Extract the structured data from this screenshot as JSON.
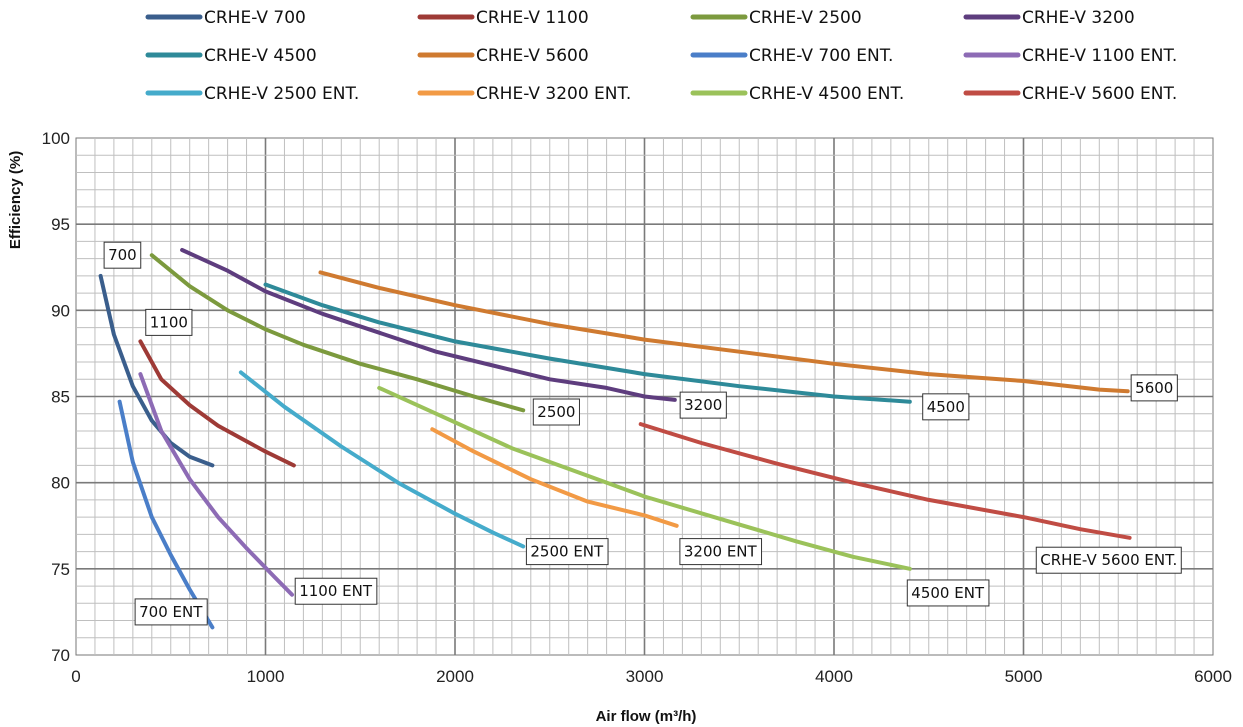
{
  "chart_data": {
    "type": "line",
    "xlabel": "Air flow (m³/h)",
    "ylabel": "Efficiency (%)",
    "xlim": [
      0,
      6000
    ],
    "ylim": [
      70,
      100
    ],
    "x_ticks": [
      0,
      1000,
      2000,
      3000,
      4000,
      5000,
      6000
    ],
    "y_ticks": [
      70,
      75,
      80,
      85,
      90,
      95,
      100
    ],
    "grid": true,
    "legend_position": "top",
    "series": [
      {
        "name": "CRHE-V 700",
        "color": "#3A5E8C",
        "points": [
          [
            130,
            92.0
          ],
          [
            200,
            88.6
          ],
          [
            300,
            85.6
          ],
          [
            400,
            83.6
          ],
          [
            500,
            82.3
          ],
          [
            600,
            81.5
          ],
          [
            720,
            81.0
          ]
        ]
      },
      {
        "name": "CRHE-V 1100",
        "color": "#9E3A36",
        "points": [
          [
            340,
            88.2
          ],
          [
            450,
            86.0
          ],
          [
            600,
            84.5
          ],
          [
            750,
            83.3
          ],
          [
            900,
            82.4
          ],
          [
            1000,
            81.8
          ],
          [
            1150,
            81.0
          ]
        ]
      },
      {
        "name": "CRHE-V 2500",
        "color": "#7C9A3E",
        "points": [
          [
            400,
            93.2
          ],
          [
            600,
            91.4
          ],
          [
            800,
            90.0
          ],
          [
            1000,
            88.9
          ],
          [
            1200,
            88.0
          ],
          [
            1500,
            86.9
          ],
          [
            1800,
            86.0
          ],
          [
            2100,
            85.0
          ],
          [
            2360,
            84.2
          ]
        ]
      },
      {
        "name": "CRHE-V 3200",
        "color": "#5E3D7E",
        "points": [
          [
            560,
            93.5
          ],
          [
            800,
            92.3
          ],
          [
            1000,
            91.1
          ],
          [
            1300,
            89.8
          ],
          [
            1600,
            88.7
          ],
          [
            1900,
            87.6
          ],
          [
            2200,
            86.8
          ],
          [
            2500,
            86.0
          ],
          [
            2800,
            85.5
          ],
          [
            3000,
            85.0
          ],
          [
            3160,
            84.8
          ]
        ]
      },
      {
        "name": "CRHE-V 4500",
        "color": "#2E8A99",
        "points": [
          [
            1000,
            91.5
          ],
          [
            1300,
            90.3
          ],
          [
            1600,
            89.3
          ],
          [
            2000,
            88.2
          ],
          [
            2500,
            87.2
          ],
          [
            3000,
            86.3
          ],
          [
            3500,
            85.6
          ],
          [
            4000,
            85.0
          ],
          [
            4400,
            84.7
          ]
        ]
      },
      {
        "name": "CRHE-V 5600",
        "color": "#CF7A30",
        "points": [
          [
            1290,
            92.2
          ],
          [
            1600,
            91.3
          ],
          [
            2000,
            90.3
          ],
          [
            2500,
            89.2
          ],
          [
            3000,
            88.3
          ],
          [
            3500,
            87.6
          ],
          [
            4000,
            86.9
          ],
          [
            4500,
            86.3
          ],
          [
            5000,
            85.9
          ],
          [
            5400,
            85.4
          ],
          [
            5550,
            85.3
          ]
        ]
      },
      {
        "name": "CRHE-V 700 ENT.",
        "color": "#4A7EC8",
        "points": [
          [
            230,
            84.7
          ],
          [
            300,
            81.2
          ],
          [
            400,
            78.0
          ],
          [
            500,
            75.8
          ],
          [
            600,
            73.8
          ],
          [
            720,
            71.6
          ]
        ]
      },
      {
        "name": "CRHE-V 1100 ENT.",
        "color": "#8D6BB5",
        "points": [
          [
            340,
            86.3
          ],
          [
            450,
            83.0
          ],
          [
            600,
            80.2
          ],
          [
            750,
            78.0
          ],
          [
            900,
            76.2
          ],
          [
            1050,
            74.5
          ],
          [
            1140,
            73.5
          ]
        ]
      },
      {
        "name": "CRHE-V 2500 ENT.",
        "color": "#45ABCB",
        "points": [
          [
            870,
            86.4
          ],
          [
            1100,
            84.4
          ],
          [
            1400,
            82.1
          ],
          [
            1700,
            80.0
          ],
          [
            2000,
            78.2
          ],
          [
            2200,
            77.1
          ],
          [
            2360,
            76.3
          ]
        ]
      },
      {
        "name": "CRHE-V 3200 ENT.",
        "color": "#F29A45",
        "points": [
          [
            1880,
            83.1
          ],
          [
            2100,
            81.8
          ],
          [
            2400,
            80.2
          ],
          [
            2700,
            78.9
          ],
          [
            3000,
            78.1
          ],
          [
            3170,
            77.5
          ]
        ]
      },
      {
        "name": "CRHE-V 4500 ENT.",
        "color": "#9BC25A",
        "points": [
          [
            1600,
            85.5
          ],
          [
            1900,
            84.0
          ],
          [
            2300,
            82.0
          ],
          [
            2700,
            80.4
          ],
          [
            3000,
            79.2
          ],
          [
            3400,
            77.9
          ],
          [
            3800,
            76.6
          ],
          [
            4100,
            75.7
          ],
          [
            4400,
            75.0
          ]
        ]
      },
      {
        "name": "CRHE-V 5600 ENT.",
        "color": "#C04C44",
        "points": [
          [
            2980,
            83.4
          ],
          [
            3300,
            82.3
          ],
          [
            3700,
            81.1
          ],
          [
            4100,
            80.0
          ],
          [
            4500,
            79.0
          ],
          [
            5000,
            78.0
          ],
          [
            5300,
            77.3
          ],
          [
            5560,
            76.8
          ]
        ]
      }
    ],
    "annotations": [
      {
        "text": "700",
        "x": 245,
        "y": 93.2
      },
      {
        "text": "1100",
        "x": 490,
        "y": 89.3
      },
      {
        "text": "2500",
        "x": 2535,
        "y": 84.1
      },
      {
        "text": "3200",
        "x": 3310,
        "y": 84.5
      },
      {
        "text": "4500",
        "x": 4590,
        "y": 84.4
      },
      {
        "text": "5600",
        "x": 5690,
        "y": 85.5
      },
      {
        "text": "700 ENT",
        "x": 500,
        "y": 72.5
      },
      {
        "text": "1100 ENT",
        "x": 1370,
        "y": 73.7
      },
      {
        "text": "2500 ENT",
        "x": 2590,
        "y": 76.0
      },
      {
        "text": "3200 ENT",
        "x": 3400,
        "y": 76.0
      },
      {
        "text": "4500 ENT",
        "x": 4600,
        "y": 73.6
      },
      {
        "text": "CRHE-V 5600 ENT.",
        "x": 5450,
        "y": 75.5
      }
    ]
  }
}
